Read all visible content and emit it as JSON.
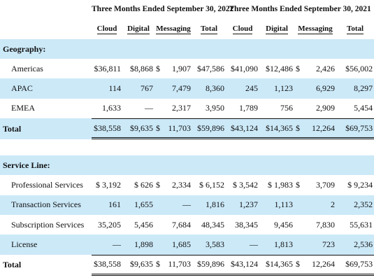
{
  "header": {
    "period_2022": "Three Months Ended September 30, 2022",
    "period_2021": "Three Months Ended September 30, 2021",
    "columns": [
      "Cloud",
      "Digital",
      "Messaging",
      "Total",
      "Cloud",
      "Digital",
      "Messaging",
      "Total"
    ]
  },
  "geography": {
    "title": "Geography:",
    "rows": [
      {
        "label": "Americas",
        "v": [
          "$36,811",
          "$8,868",
          "$",
          "1,907",
          "$47,586",
          "$41,090",
          "$12,486",
          "$",
          "2,426",
          "$56,002"
        ]
      },
      {
        "label": "APAC",
        "v": [
          "114",
          "767",
          "",
          "7,479",
          "8,360",
          "245",
          "1,123",
          "",
          "6,929",
          "8,297"
        ]
      },
      {
        "label": "EMEA",
        "v": [
          "1,633",
          "—",
          "",
          "2,317",
          "3,950",
          "1,789",
          "756",
          "",
          "2,909",
          "5,454"
        ]
      }
    ],
    "total": {
      "label": "Total",
      "v": [
        "$38,558",
        "$9,635",
        "$",
        "11,703",
        "$59,896",
        "$43,124",
        "$14,365",
        "$",
        "12,264",
        "$69,753"
      ]
    }
  },
  "service_line": {
    "title": "Service Line:",
    "rows": [
      {
        "label": "Professional Services",
        "v": [
          "$ 3,192",
          "$ 626",
          "$",
          "2,334",
          "$ 6,152",
          "$ 3,542",
          "$ 1,983",
          "$",
          "3,709",
          "$ 9,234"
        ]
      },
      {
        "label": "Transaction Services",
        "v": [
          "161",
          "1,655",
          "",
          "—",
          "1,816",
          "1,237",
          "1,113",
          "",
          "2",
          "2,352"
        ]
      },
      {
        "label": "Subscription Services",
        "v": [
          "35,205",
          "5,456",
          "",
          "7,684",
          "48,345",
          "38,345",
          "9,456",
          "",
          "7,830",
          "55,631"
        ]
      },
      {
        "label": "License",
        "v": [
          "—",
          "1,898",
          "",
          "1,685",
          "3,583",
          "—",
          "1,813",
          "",
          "723",
          "2,536"
        ]
      }
    ],
    "total": {
      "label": "Total",
      "v": [
        "$38,558",
        "$9,635",
        "$",
        "11,703",
        "$59,896",
        "$43,124",
        "$14,365",
        "$",
        "12,264",
        "$69,753"
      ]
    }
  }
}
